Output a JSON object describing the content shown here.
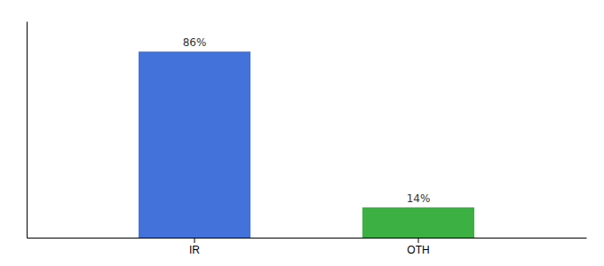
{
  "chart_data": {
    "type": "bar",
    "categories": [
      "IR",
      "OTH"
    ],
    "values": [
      86,
      14
    ],
    "value_labels": [
      "86%",
      "14%"
    ],
    "colors": [
      "#4472db",
      "#3cb043"
    ],
    "ylim": [
      0,
      100
    ],
    "yticks": [],
    "tick_labels": "x",
    "data_labels": true
  }
}
